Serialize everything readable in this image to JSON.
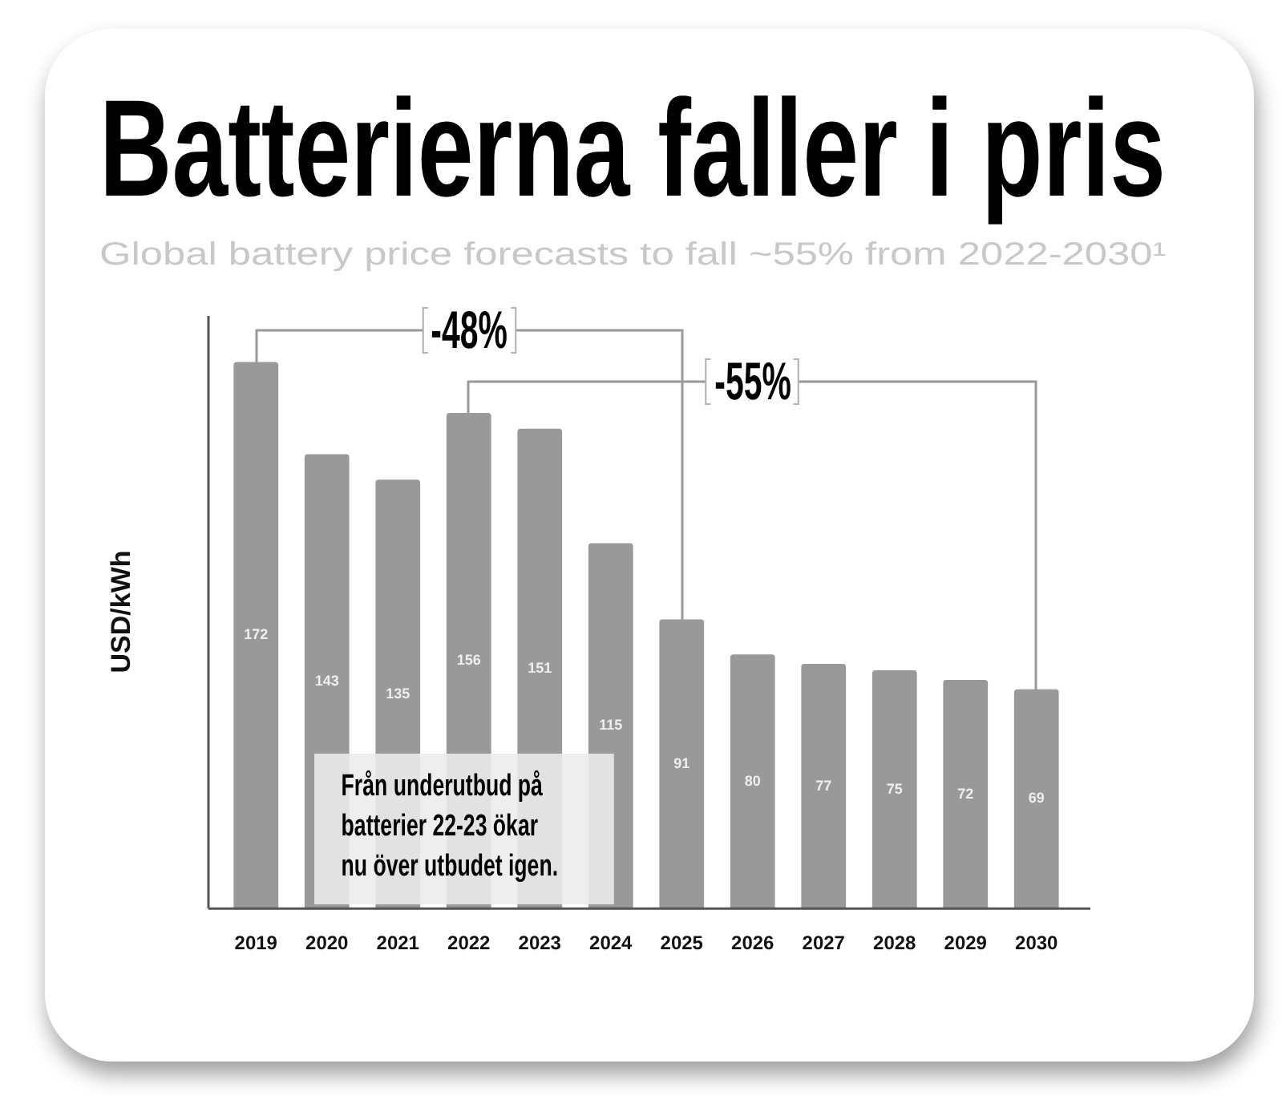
{
  "chart_data": {
    "type": "bar",
    "title": "Batterierna faller i pris",
    "subtitle": "Global battery price forecasts to fall ~55% from 2022-2030¹",
    "ylabel": "USD/kWh",
    "categories": [
      "2019",
      "2020",
      "2021",
      "2022",
      "2023",
      "2024",
      "2025",
      "2026",
      "2027",
      "2028",
      "2029",
      "2030"
    ],
    "values": [
      172,
      143,
      135,
      156,
      151,
      115,
      91,
      80,
      77,
      75,
      72,
      69
    ],
    "color": "#999999",
    "data_labels": true,
    "tick_labels": "x",
    "annotations": [
      "-48%",
      "-55%",
      "Från underutbud på batterier 22-23 ökar nu över utbudet igen."
    ]
  }
}
